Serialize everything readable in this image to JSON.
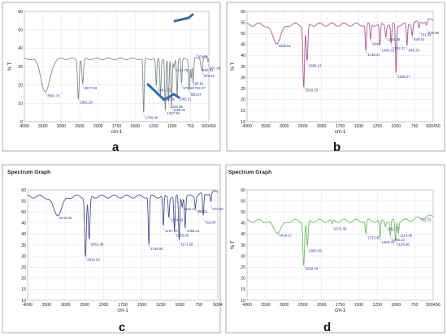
{
  "chart_data": [
    {
      "panel": "a",
      "type": "line",
      "title": "",
      "xlabel": "cm-1",
      "ylabel": "% T",
      "xlim": [
        4000,
        450
      ],
      "ylim": [
        0,
        100
      ],
      "xticks": [
        "4000",
        "3500",
        "3000",
        "2500",
        "2000",
        "1750",
        "1500",
        "1250",
        "1000",
        "750",
        "500450"
      ],
      "yticks": [
        "0",
        "10",
        "20",
        "30",
        "40",
        "50",
        "60"
      ],
      "color": "#7d8a8a",
      "baseline": 57,
      "peaks": [
        {
          "x": 3591.74,
          "y": 27,
          "label": "3591.74"
        },
        {
          "x": 2961.28,
          "y": 21,
          "label": "2961.28"
        },
        {
          "x": 2877.93,
          "y": 34,
          "label": "2877.93"
        },
        {
          "x": 1705.45,
          "y": 7,
          "label": "1705.45"
        },
        {
          "x": 1461.75,
          "y": 32,
          "label": "1461.75"
        },
        {
          "x": 1380.61,
          "y": 24,
          "label": "1380.61"
        },
        {
          "x": 1287.96,
          "y": 11,
          "label": "1287.96"
        },
        {
          "x": 1226.96,
          "y": 17,
          "label": "1226.96"
        },
        {
          "x": 1121.78,
          "y": 50,
          "label": "1121.78"
        },
        {
          "x": 1168.02,
          "y": 14,
          "label": "1168.02"
        },
        {
          "x": 1060.21,
          "y": 24,
          "label": "1060.21"
        },
        {
          "x": 975.66,
          "y": 34,
          "label": "975.66"
        },
        {
          "x": 830.57,
          "y": 28,
          "label": "830.57"
        },
        {
          "x": 790.82,
          "y": 38,
          "label": "790.82"
        },
        {
          "x": 752.37,
          "y": 34,
          "label": "752.37"
        },
        {
          "x": 602.81,
          "y": 50,
          "label": "602.81"
        },
        {
          "x": 578.51,
          "y": 45,
          "label": "578.51"
        },
        {
          "x": 703.92,
          "y": 62,
          "label": "703.92"
        },
        {
          "x": 467.38,
          "y": 52,
          "label": "467.38"
        }
      ]
    },
    {
      "panel": "b",
      "type": "line",
      "title": "",
      "xlabel": "cm-1",
      "ylabel": "% T",
      "xlim": [
        4000,
        450
      ],
      "ylim": [
        10,
        60
      ],
      "xticks": [
        "4000",
        "3500",
        "3000",
        "2500",
        "2000",
        "1750",
        "1500",
        "1250",
        "1000",
        "750",
        "500450"
      ],
      "yticks": [
        "10",
        "15",
        "20",
        "25",
        "30",
        "35",
        "40",
        "45",
        "50",
        "55",
        "60"
      ],
      "color": "#b0529a",
      "baseline": 54,
      "peaks": [
        {
          "x": 3436.51,
          "y": 46,
          "label": "3436.51"
        },
        {
          "x": 2919.33,
          "y": 26,
          "label": "2919.33"
        },
        {
          "x": 2855.13,
          "y": 37,
          "label": "2855.13"
        },
        {
          "x": 1733.47,
          "y": 42,
          "label": "1733.47"
        },
        {
          "x": 1644,
          "y": 47,
          "label": "1644"
        },
        {
          "x": 1466.31,
          "y": 44,
          "label": "1466.31"
        },
        {
          "x": 1354.36,
          "y": 49,
          "label": "1354.36"
        },
        {
          "x": 1252.17,
          "y": 45,
          "label": "1252.17"
        },
        {
          "x": 1158.27,
          "y": 32,
          "label": "1158.27"
        },
        {
          "x": 949.33,
          "y": 44,
          "label": "949.33"
        },
        {
          "x": 849.63,
          "y": 49,
          "label": "849.63"
        },
        {
          "x": 721.34,
          "y": 51,
          "label": "721.34"
        },
        {
          "x": 576.98,
          "y": 52,
          "label": "576.98"
        }
      ]
    },
    {
      "panel": "c",
      "type": "line",
      "title": "Spectrum Graph",
      "xlabel": "cm-1",
      "ylabel": "",
      "xlim": [
        4000,
        450
      ],
      "ylim": [
        10,
        60
      ],
      "xticks": [
        "4000",
        "3500",
        "3000",
        "2500",
        "2000",
        "1750",
        "1500",
        "1250",
        "1000",
        "750",
        "5004"
      ],
      "yticks": [
        "10",
        "15",
        "20",
        "25",
        "30",
        "35",
        "40",
        "45",
        "50",
        "55",
        "60"
      ],
      "color": "#4a4f8e",
      "baseline": 57,
      "peaks": [
        {
          "x": 3442.36,
          "y": 49,
          "label": "3442.36"
        },
        {
          "x": 2919.93,
          "y": 30,
          "label": "2919.93"
        },
        {
          "x": 2851.39,
          "y": 37,
          "label": "2851.39"
        },
        {
          "x": 1736.9,
          "y": 35,
          "label": "1736.90"
        },
        {
          "x": 1467.5,
          "y": 43,
          "label": "1467.50"
        },
        {
          "x": 1364.39,
          "y": 48,
          "label": "1364.39"
        },
        {
          "x": 1259.06,
          "y": 41,
          "label": "1259.06"
        },
        {
          "x": 1171.26,
          "y": 37,
          "label": "1171.26"
        },
        {
          "x": 1059.41,
          "y": 43,
          "label": "1059.41"
        },
        {
          "x": 1115.43,
          "y": 53,
          "label": "1115.43"
        },
        {
          "x": 869.11,
          "y": 52,
          "label": "869.11"
        },
        {
          "x": 722,
          "y": 47,
          "label": "722.00"
        },
        {
          "x": 579.6,
          "y": 53,
          "label": "579.60"
        }
      ]
    },
    {
      "panel": "d",
      "type": "line",
      "title": "Spectrum Graph",
      "xlabel": "cm-1",
      "ylabel": "% T",
      "xlim": [
        4000,
        450
      ],
      "ylim": [
        10,
        60
      ],
      "xticks": [
        "4000",
        "3500",
        "3000",
        "2500",
        "2000",
        "1750",
        "1500",
        "1250",
        "1000",
        "750",
        "500450"
      ],
      "yticks": [
        "10",
        "15",
        "20",
        "25",
        "30",
        "35",
        "40",
        "45",
        "50",
        "55",
        "60"
      ],
      "color": "#6cbd5e",
      "baseline": 46,
      "peaks": [
        {
          "x": 3419.17,
          "y": 41,
          "label": "3419.17"
        },
        {
          "x": 2919.44,
          "y": 26,
          "label": "2919.44"
        },
        {
          "x": 2850.59,
          "y": 34,
          "label": "2850.59"
        },
        {
          "x": 2376.38,
          "y": 44,
          "label": "2376.38"
        },
        {
          "x": 1733.45,
          "y": 40,
          "label": "1733.45"
        },
        {
          "x": 1463.78,
          "y": 38,
          "label": "1463.78"
        },
        {
          "x": 1362.77,
          "y": 44,
          "label": "1362.77"
        },
        {
          "x": 1266.23,
          "y": 39,
          "label": "1266.23"
        },
        {
          "x": 1168.96,
          "y": 37,
          "label": "1168.96"
        },
        {
          "x": 1114.39,
          "y": 41,
          "label": "1114.39"
        },
        {
          "x": 722.79,
          "y": 48,
          "label": "722.79"
        }
      ]
    }
  ]
}
